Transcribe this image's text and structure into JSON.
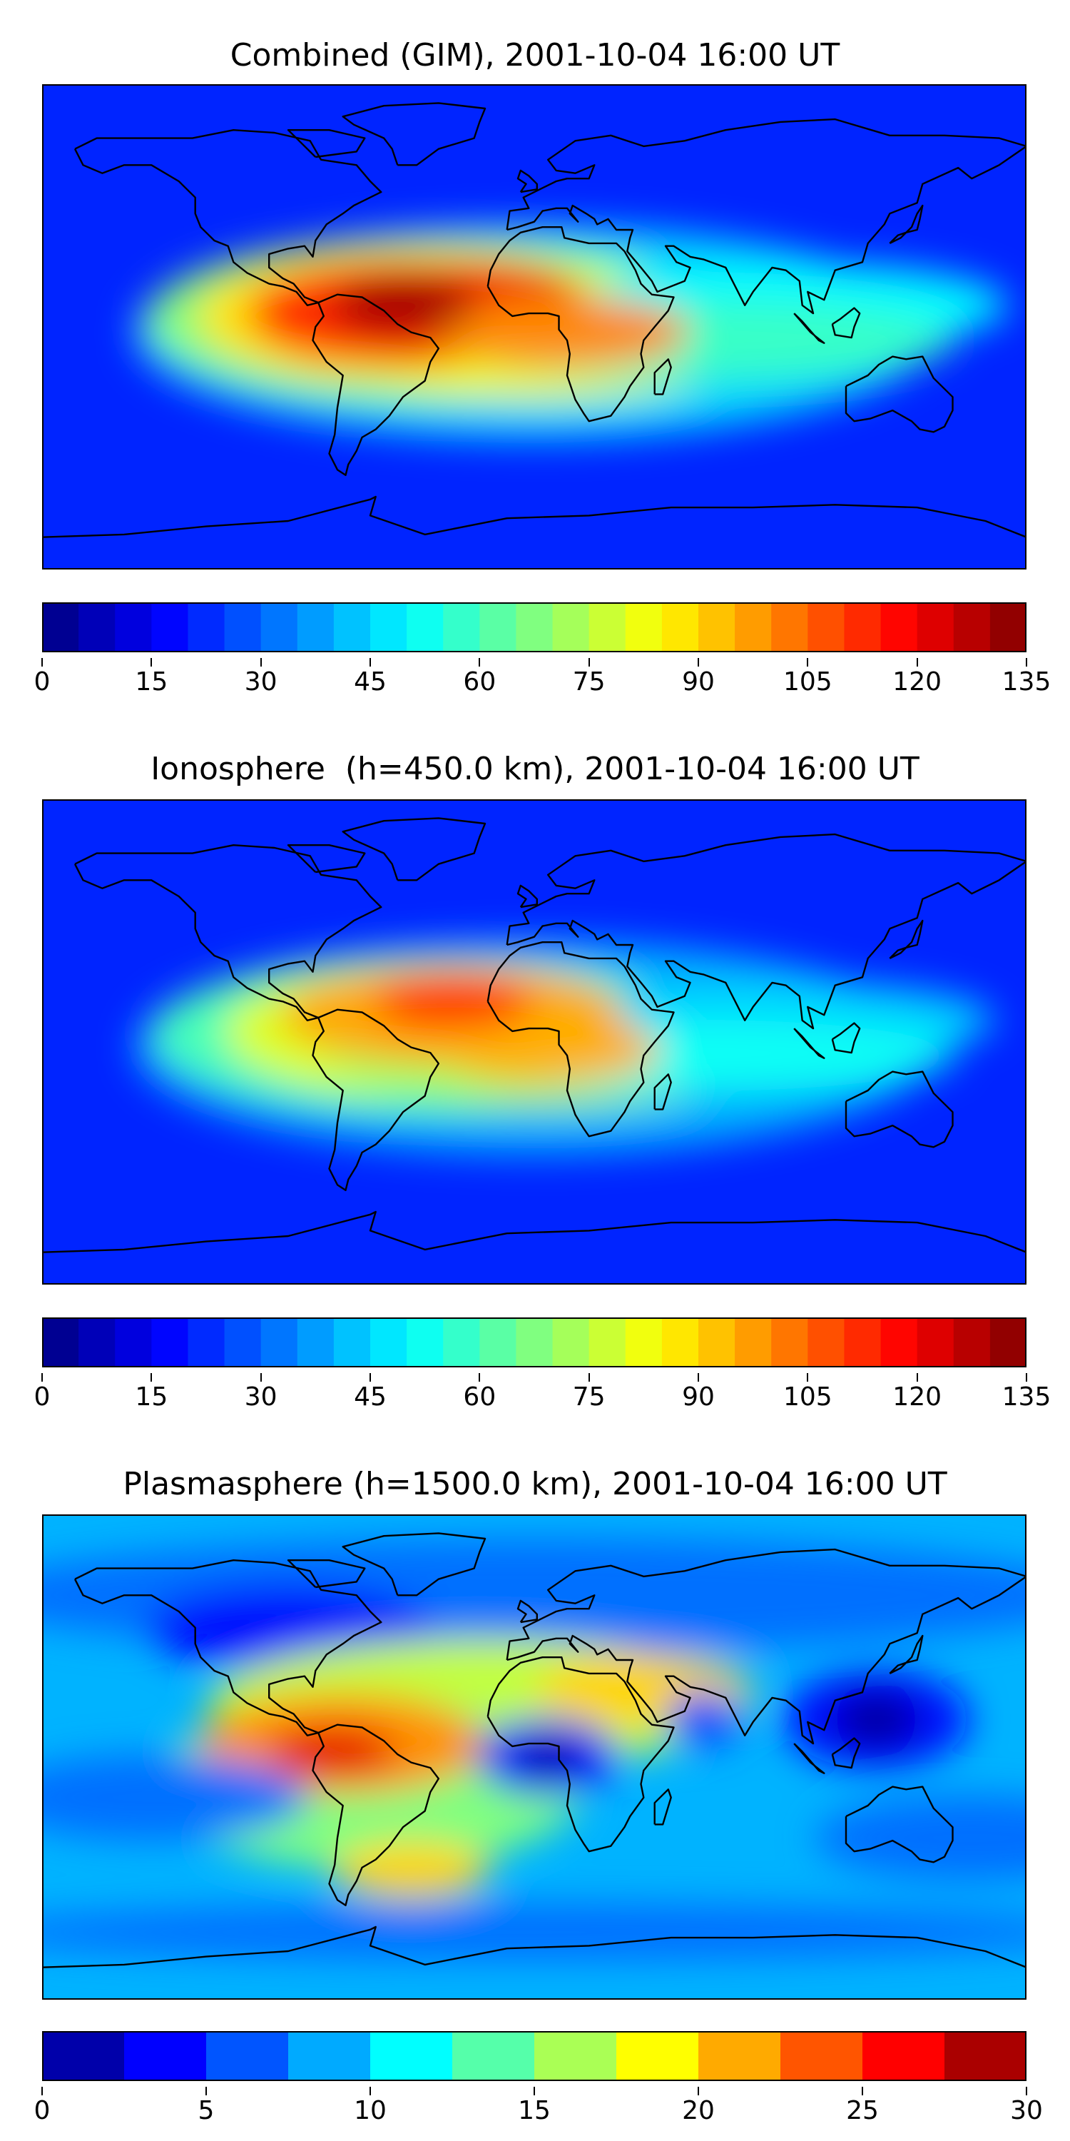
{
  "chart_data": [
    {
      "type": "heatmap",
      "title": "Combined (GIM), 2001-10-04 16:00 UT",
      "colormap": "jet",
      "colorbar": {
        "vmin": 0,
        "vmax": 135,
        "levels": 27,
        "ticks": [
          "0",
          "15",
          "30",
          "45",
          "60",
          "75",
          "90",
          "105",
          "120",
          "135"
        ],
        "tick_values": [
          0,
          15,
          30,
          45,
          60,
          75,
          90,
          105,
          120,
          135
        ]
      },
      "grid": false,
      "map": "world coastlines",
      "regions": [
        {
          "lon": -55,
          "lat": 5,
          "value": 128
        },
        {
          "lon": -40,
          "lat": 8,
          "value": 125
        },
        {
          "lon": 5,
          "lat": -5,
          "value": 110
        },
        {
          "lon": 45,
          "lat": 10,
          "value": 85
        },
        {
          "lon": 100,
          "lat": 10,
          "value": 70
        },
        {
          "lon": 100,
          "lat": -10,
          "value": 60
        }
      ]
    },
    {
      "type": "heatmap",
      "title": "Ionosphere  (h=450.0 km), 2001-10-04 16:00 UT",
      "colormap": "jet",
      "colorbar": {
        "vmin": 0,
        "vmax": 135,
        "levels": 27,
        "ticks": [
          "0",
          "15",
          "30",
          "45",
          "60",
          "75",
          "90",
          "105",
          "120",
          "135"
        ],
        "tick_values": [
          0,
          15,
          30,
          45,
          60,
          75,
          90,
          105,
          120,
          135
        ]
      },
      "grid": false,
      "map": "world coastlines",
      "regions": [
        {
          "lon": -30,
          "lat": 15,
          "value": 112
        },
        {
          "lon": -55,
          "lat": 0,
          "value": 100
        },
        {
          "lon": 5,
          "lat": -5,
          "value": 100
        },
        {
          "lon": 45,
          "lat": 10,
          "value": 75
        },
        {
          "lon": 100,
          "lat": -10,
          "value": 55
        }
      ]
    },
    {
      "type": "heatmap",
      "title": "Plasmasphere (h=1500.0 km), 2001-10-04 16:00 UT",
      "colormap": "jet",
      "colorbar": {
        "vmin": 0,
        "vmax": 30,
        "levels": 12,
        "ticks": [
          "0",
          "5",
          "10",
          "15",
          "20",
          "25",
          " 30"
        ],
        "tick_values": [
          0,
          5,
          10,
          15,
          20,
          25,
          30
        ]
      },
      "grid": false,
      "map": "world coastlines",
      "regions": [
        {
          "lon": -75,
          "lat": 5,
          "value": 26
        },
        {
          "lon": 0,
          "lat": 0,
          "value": 3
        },
        {
          "lon": 40,
          "lat": 25,
          "value": 22
        },
        {
          "lon": 60,
          "lat": 15,
          "value": 5
        },
        {
          "lon": 125,
          "lat": 15,
          "value": 2
        },
        {
          "lon": -45,
          "lat": -40,
          "value": 20
        }
      ]
    }
  ]
}
